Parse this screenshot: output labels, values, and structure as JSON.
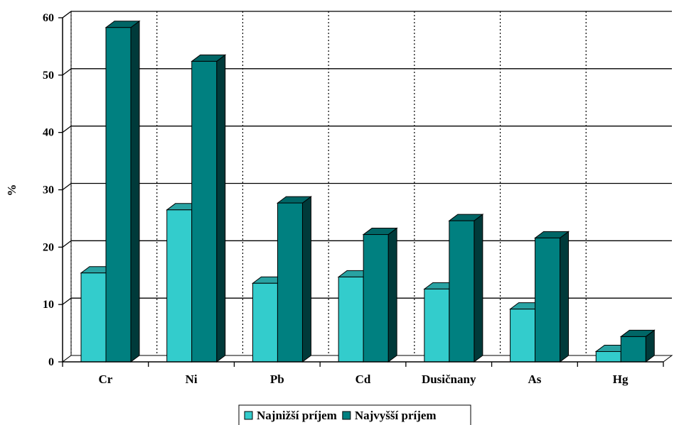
{
  "chart_data": {
    "type": "bar",
    "ylabel": "%",
    "xlabel": "",
    "title": "",
    "ylim": [
      0,
      60
    ],
    "yticks": [
      0,
      10,
      20,
      30,
      40,
      50,
      60
    ],
    "categories": [
      "Cr",
      "Ni",
      "Pb",
      "Cd",
      "Dusičnany",
      "As",
      "Hg"
    ],
    "series": [
      {
        "name": "Najnižší príjem",
        "color": "#33CCCC",
        "values": [
          15.5,
          26.5,
          13.7,
          14.8,
          12.7,
          9.2,
          1.8
        ]
      },
      {
        "name": "Najvyšší príjem",
        "color": "#008080",
        "values": [
          58.3,
          52.4,
          27.7,
          22.2,
          24.6,
          21.6,
          4.4
        ]
      }
    ],
    "grid": true,
    "legend_position": "bottom-center"
  }
}
